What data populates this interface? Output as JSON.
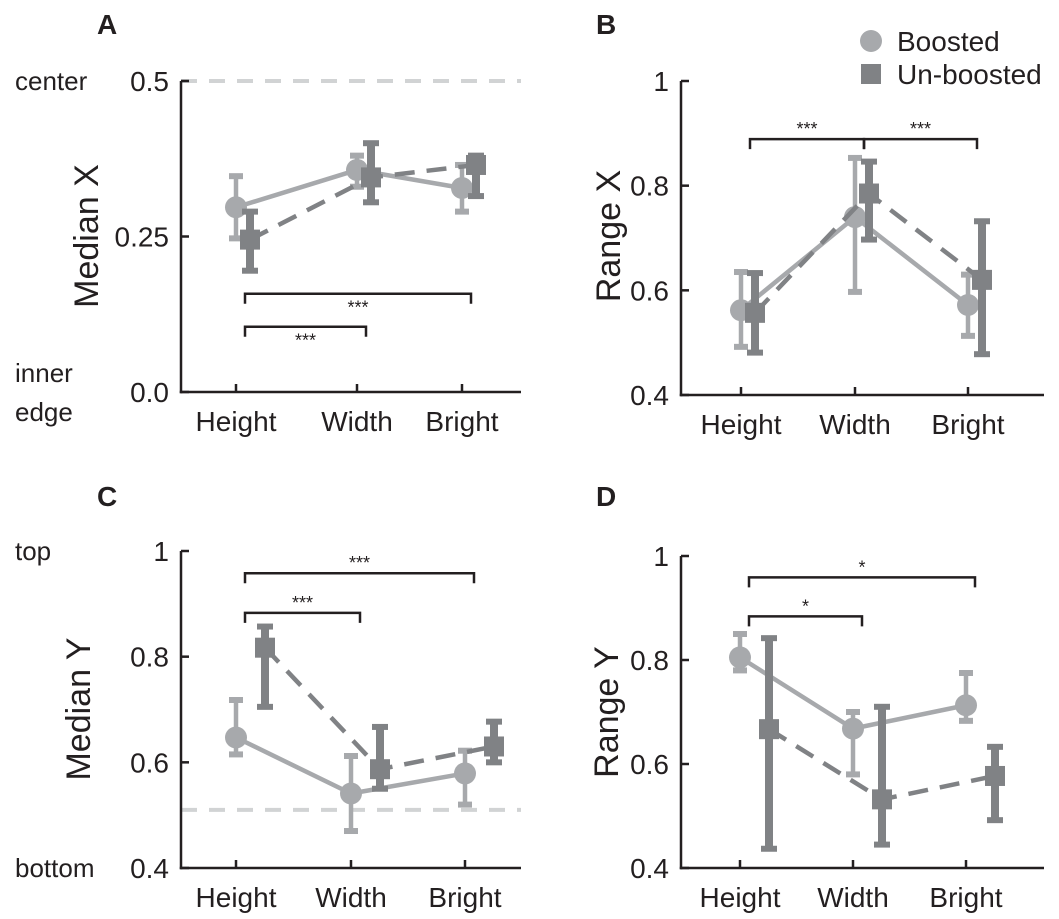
{
  "colors": {
    "boosted": "#a7a9ac",
    "unboosted": "#808285",
    "refline": "#d1d3d4",
    "axis": "#231f20"
  },
  "legend": {
    "boosted": "Boosted",
    "unboosted": "Un-boosted"
  },
  "chart_data": [
    {
      "panel": "A",
      "type": "line",
      "ylabel": "Median X",
      "ylim": [
        0,
        0.5
      ],
      "yticks": [
        "0.0",
        "0.25",
        "0.5"
      ],
      "side_labels": {
        "top": "center",
        "bottom": [
          "inner",
          "edge"
        ]
      },
      "refline": 0.5,
      "categories": [
        "Height",
        "Width",
        "Bright"
      ],
      "series": [
        {
          "name": "Boosted",
          "values": [
            0.297,
            0.357,
            0.328
          ],
          "err_low": [
            0.247,
            0.33,
            0.29
          ],
          "err_high": [
            0.347,
            0.38,
            0.365
          ]
        },
        {
          "name": "Un-boosted",
          "values": [
            0.245,
            0.345,
            0.365
          ],
          "err_low": [
            0.195,
            0.305,
            0.315
          ],
          "err_high": [
            0.29,
            0.4,
            0.38
          ]
        }
      ],
      "brackets": [
        {
          "from": 0,
          "to": 2,
          "label": "***",
          "y": 0.158,
          "label_pos": "below"
        },
        {
          "from": 0,
          "to": 1,
          "label": "***",
          "y": 0.105,
          "label_pos": "below"
        }
      ]
    },
    {
      "panel": "B",
      "type": "line",
      "ylabel": "Range X",
      "ylim": [
        0.4,
        1
      ],
      "yticks": [
        "0.4",
        "0.6",
        "0.8",
        "1"
      ],
      "categories": [
        "Height",
        "Width",
        "Bright"
      ],
      "series": [
        {
          "name": "Boosted",
          "values": [
            0.562,
            0.74,
            0.572
          ],
          "err_low": [
            0.492,
            0.597,
            0.513
          ],
          "err_high": [
            0.635,
            0.853,
            0.63
          ]
        },
        {
          "name": "Un-boosted",
          "values": [
            0.557,
            0.785,
            0.62
          ],
          "err_low": [
            0.481,
            0.697,
            0.478
          ],
          "err_high": [
            0.633,
            0.846,
            0.732
          ]
        }
      ],
      "brackets": [
        {
          "from": 0,
          "to": 1,
          "label": "***",
          "y": 0.889,
          "label_pos": "above"
        },
        {
          "from": 1,
          "to": 2,
          "label": "***",
          "y": 0.889,
          "label_pos": "above"
        }
      ]
    },
    {
      "panel": "C",
      "type": "line",
      "ylabel": "Median Y",
      "ylim": [
        0.4,
        1
      ],
      "yticks": [
        "0.4",
        "0.6",
        "0.8",
        "1"
      ],
      "side_labels": {
        "top": "top",
        "bottom": [
          "bottom"
        ]
      },
      "refline": 0.51,
      "categories": [
        "Height",
        "Width",
        "Bright"
      ],
      "series": [
        {
          "name": "Boosted",
          "values": [
            0.647,
            0.541,
            0.579
          ],
          "err_low": [
            0.615,
            0.47,
            0.52
          ],
          "err_high": [
            0.718,
            0.612,
            0.622
          ]
        },
        {
          "name": "Un-boosted",
          "values": [
            0.817,
            0.587,
            0.63
          ],
          "err_low": [
            0.705,
            0.55,
            0.6
          ],
          "err_high": [
            0.857,
            0.667,
            0.677
          ]
        }
      ],
      "brackets": [
        {
          "from": 0,
          "to": 2,
          "label": "***",
          "y": 0.958,
          "label_pos": "above"
        },
        {
          "from": 0,
          "to": 1,
          "label": "***",
          "y": 0.883,
          "label_pos": "above"
        }
      ]
    },
    {
      "panel": "D",
      "type": "line",
      "ylabel": "Range Y",
      "ylim": [
        0.4,
        1
      ],
      "yticks": [
        "0.4",
        "0.6",
        "0.8",
        "1"
      ],
      "categories": [
        "Height",
        "Width",
        "Bright"
      ],
      "series": [
        {
          "name": "Boosted",
          "values": [
            0.805,
            0.668,
            0.713
          ],
          "err_low": [
            0.78,
            0.58,
            0.683
          ],
          "err_high": [
            0.85,
            0.7,
            0.775
          ]
        },
        {
          "name": "Un-boosted",
          "values": [
            0.667,
            0.532,
            0.577
          ],
          "err_low": [
            0.437,
            0.445,
            0.492
          ],
          "err_high": [
            0.842,
            0.71,
            0.633
          ]
        }
      ],
      "brackets": [
        {
          "from": 0,
          "to": 2,
          "label": "*",
          "y": 0.959,
          "label_pos": "above"
        },
        {
          "from": 0,
          "to": 1,
          "label": "*",
          "y": 0.884,
          "label_pos": "above"
        }
      ]
    }
  ]
}
